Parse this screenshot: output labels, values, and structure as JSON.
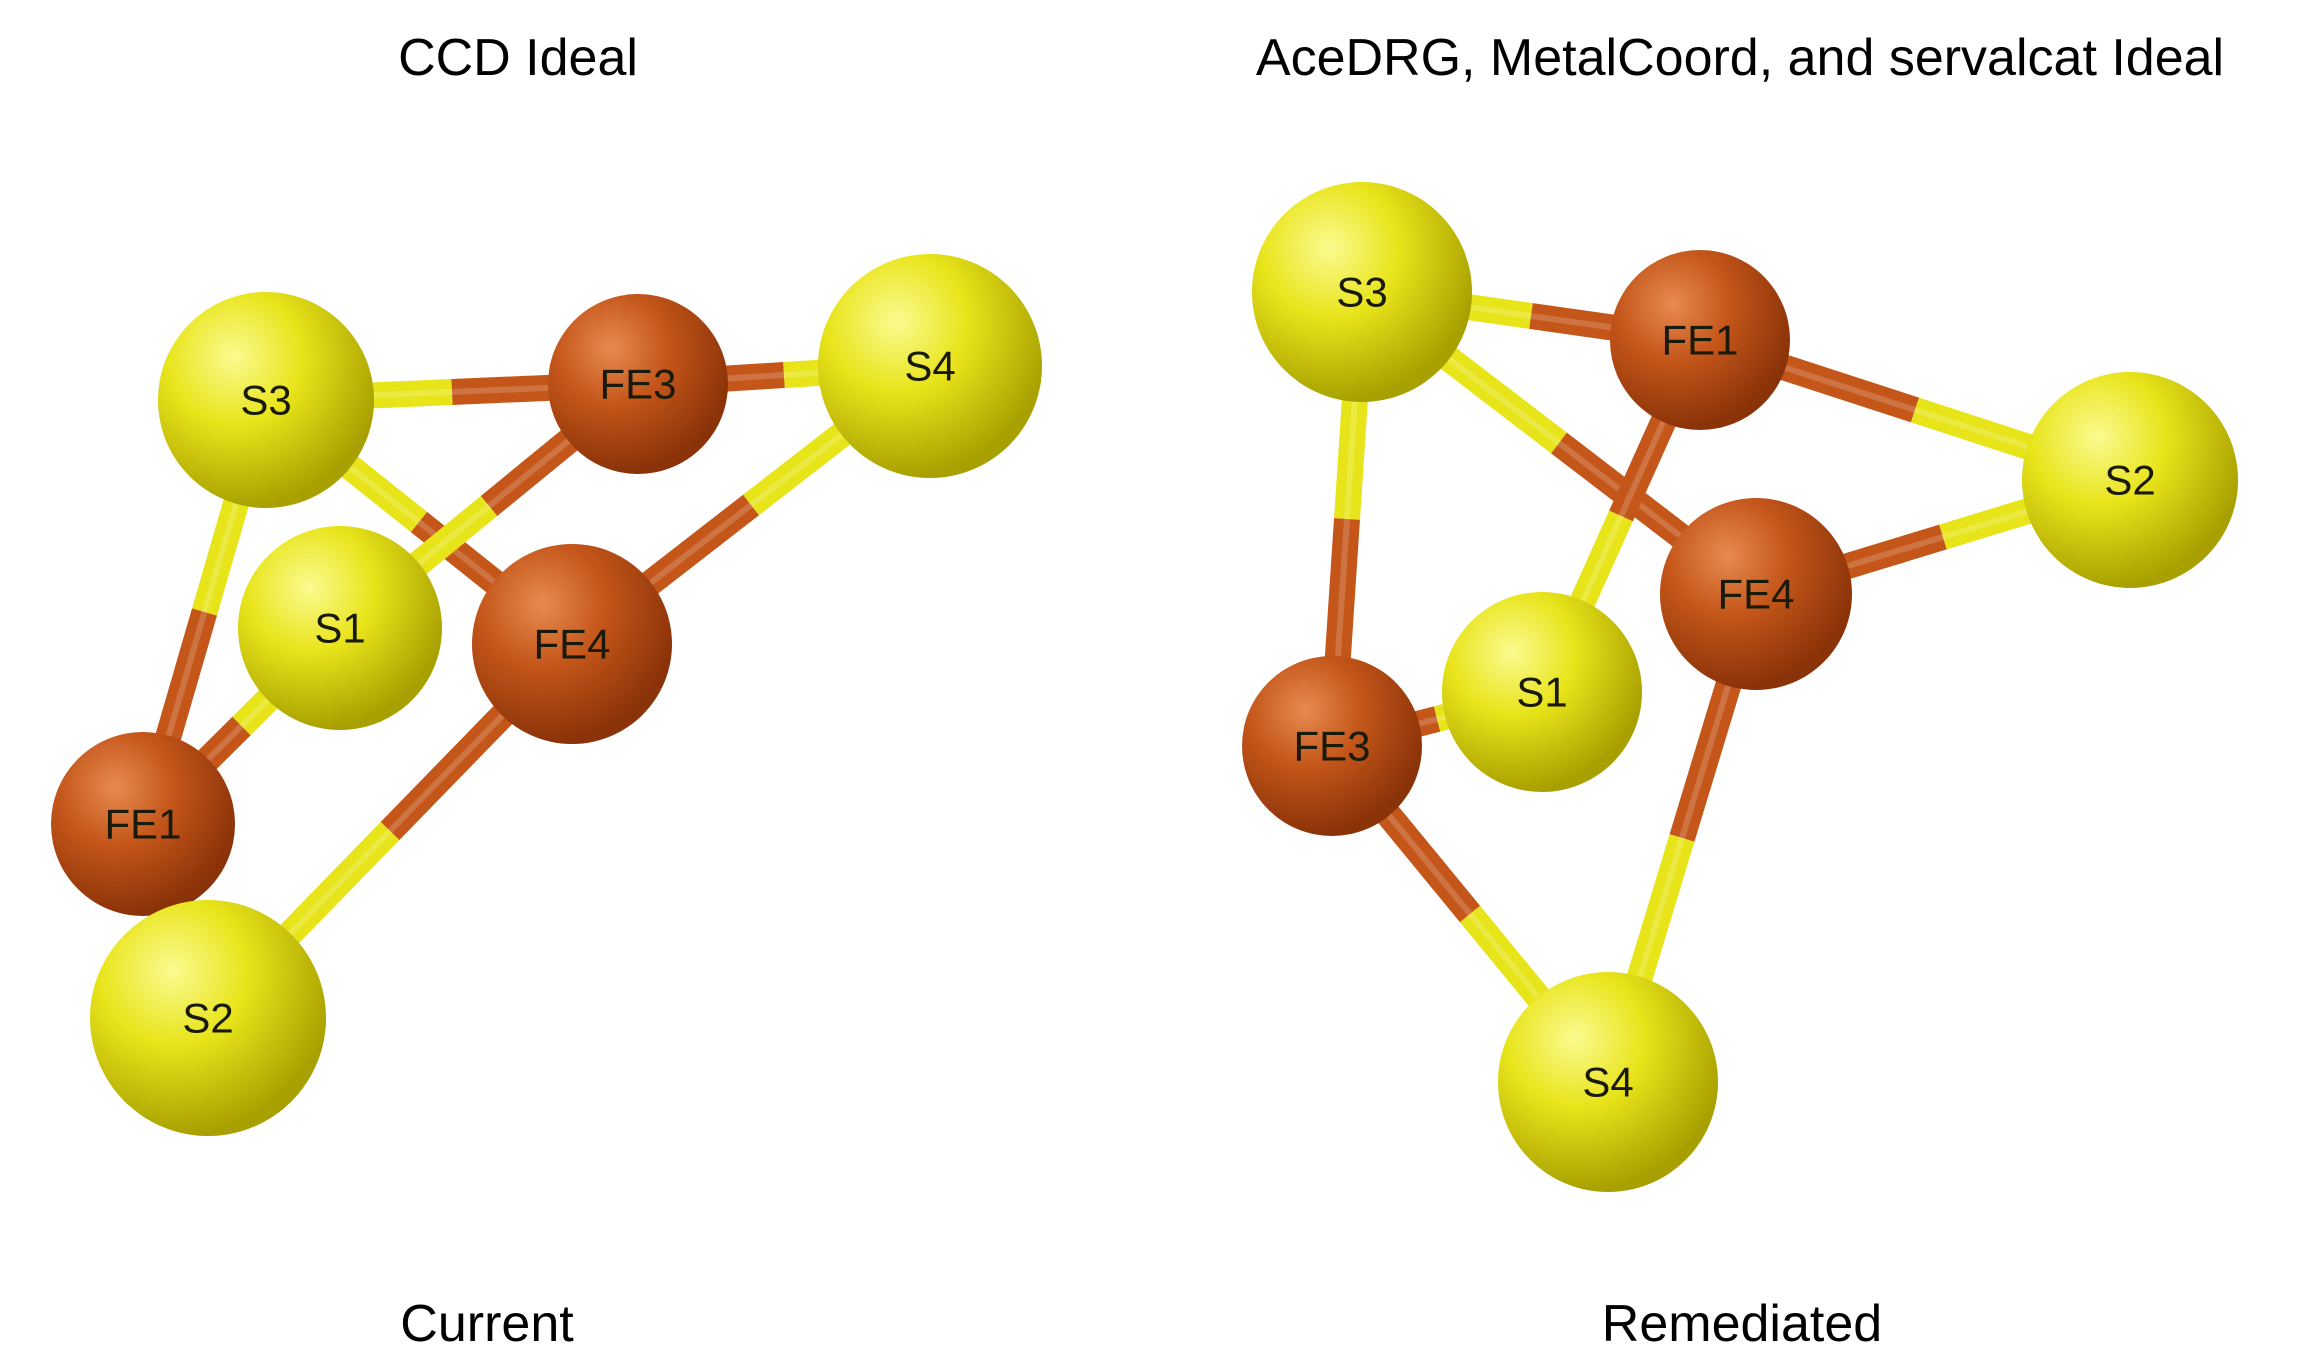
{
  "captions": {
    "left_title": "CCD Ideal",
    "right_title": "AceDRG, MetalCoord, and servalcat Ideal",
    "left_footer": "Current",
    "right_footer": "Remediated"
  },
  "colors": {
    "sulfur": "#e8e41a",
    "iron": "#c4561a",
    "background": "#ffffff"
  },
  "molecules": [
    {
      "id": "ccd-ideal",
      "atoms": [
        {
          "id": "S3",
          "element": "S",
          "label": "S3"
        },
        {
          "id": "FE3",
          "element": "Fe",
          "label": "FE3"
        },
        {
          "id": "S4",
          "element": "S",
          "label": "S4"
        },
        {
          "id": "S1",
          "element": "S",
          "label": "S1"
        },
        {
          "id": "FE4",
          "element": "Fe",
          "label": "FE4"
        },
        {
          "id": "FE1",
          "element": "Fe",
          "label": "FE1"
        },
        {
          "id": "S2",
          "element": "S",
          "label": "S2"
        }
      ],
      "bonds": [
        [
          "S3",
          "FE3"
        ],
        [
          "FE3",
          "S4"
        ],
        [
          "S3",
          "FE4"
        ],
        [
          "S4",
          "FE4"
        ],
        [
          "S3",
          "FE1"
        ],
        [
          "FE3",
          "S1"
        ],
        [
          "S1",
          "FE1"
        ],
        [
          "FE1",
          "S2"
        ],
        [
          "FE4",
          "S2"
        ]
      ]
    },
    {
      "id": "remediated-ideal",
      "atoms": [
        {
          "id": "S3",
          "element": "S",
          "label": "S3"
        },
        {
          "id": "FE1",
          "element": "Fe",
          "label": "FE1"
        },
        {
          "id": "S2",
          "element": "S",
          "label": "S2"
        },
        {
          "id": "FE4",
          "element": "Fe",
          "label": "FE4"
        },
        {
          "id": "S1",
          "element": "S",
          "label": "S1"
        },
        {
          "id": "FE3",
          "element": "Fe",
          "label": "FE3"
        },
        {
          "id": "S4",
          "element": "S",
          "label": "S4"
        }
      ],
      "bonds": [
        [
          "S3",
          "FE1"
        ],
        [
          "FE1",
          "S2"
        ],
        [
          "S3",
          "FE4"
        ],
        [
          "FE4",
          "S2"
        ],
        [
          "S3",
          "FE3"
        ],
        [
          "FE1",
          "S1"
        ],
        [
          "S1",
          "FE3"
        ],
        [
          "FE3",
          "S4"
        ],
        [
          "FE4",
          "S4"
        ]
      ]
    }
  ]
}
